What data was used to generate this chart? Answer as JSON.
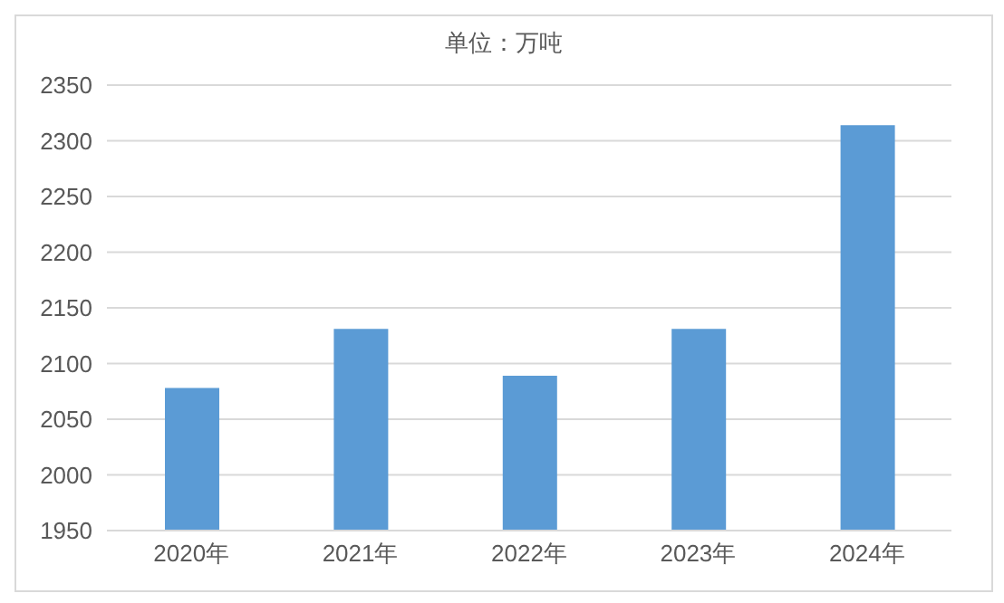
{
  "chart_data": {
    "type": "bar",
    "title": "单位：万吨",
    "categories": [
      "2020年",
      "2021年",
      "2022年",
      "2023年",
      "2024年"
    ],
    "values": [
      2078,
      2131,
      2089,
      2131,
      2314
    ],
    "color": "#5b9bd5",
    "ylim": [
      1950,
      2350
    ],
    "yticks": [
      1950,
      2000,
      2050,
      2100,
      2150,
      2200,
      2250,
      2300,
      2350
    ],
    "grid": "y"
  }
}
